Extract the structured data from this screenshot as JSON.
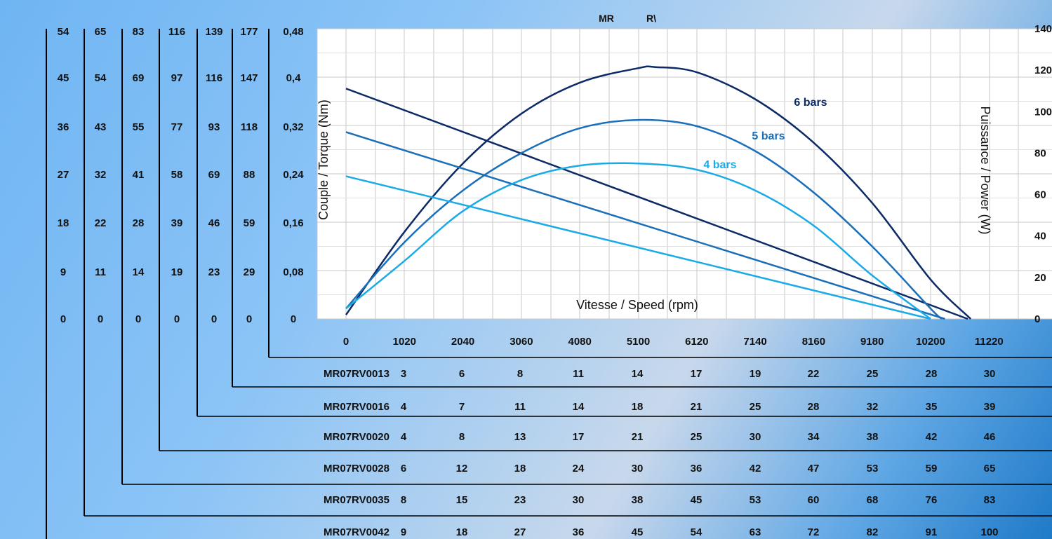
{
  "chart_data": {
    "type": "line",
    "title_parts": [
      "MR",
      "R\\"
    ],
    "xlabel": "Vitesse / Speed (rpm)",
    "ylabel": "Couple / Torque (Nm)",
    "y2label": "Puissance / Power (W)",
    "x_ticks": [
      "0",
      "1020",
      "2040",
      "3060",
      "4080",
      "5100",
      "6120",
      "7140",
      "8160",
      "9180",
      "10200",
      "11220"
    ],
    "xlim": [
      0,
      11860
    ],
    "y_ticks": [
      "0",
      "0,08",
      "0,16",
      "0,24",
      "0,32",
      "0,4",
      "0,48"
    ],
    "ylim": [
      0,
      0.48
    ],
    "y2_ticks": [
      "0",
      "20",
      "40",
      "60",
      "80",
      "100",
      "120",
      "140"
    ],
    "y2lim": [
      0,
      140
    ],
    "torque_columns": [
      [
        "0",
        "9",
        "18",
        "27",
        "36",
        "45",
        "54"
      ],
      [
        "0",
        "11",
        "22",
        "32",
        "43",
        "54",
        "65"
      ],
      [
        "0",
        "14",
        "28",
        "41",
        "55",
        "69",
        "83"
      ],
      [
        "0",
        "19",
        "39",
        "58",
        "77",
        "97",
        "116"
      ],
      [
        "0",
        "23",
        "46",
        "69",
        "93",
        "116",
        "139"
      ],
      [
        "0",
        "29",
        "59",
        "88",
        "118",
        "147",
        "177"
      ]
    ],
    "models": [
      {
        "name": "MR07RV0013",
        "values": [
          "3",
          "6",
          "8",
          "11",
          "14",
          "17",
          "19",
          "22",
          "25",
          "28",
          "30"
        ]
      },
      {
        "name": "MR07RV0016",
        "values": [
          "4",
          "7",
          "11",
          "14",
          "18",
          "21",
          "25",
          "28",
          "32",
          "35",
          "39"
        ]
      },
      {
        "name": "MR07RV0020",
        "values": [
          "4",
          "8",
          "13",
          "17",
          "21",
          "25",
          "30",
          "34",
          "38",
          "42",
          "46"
        ]
      },
      {
        "name": "MR07RV0028",
        "values": [
          "6",
          "12",
          "18",
          "24",
          "30",
          "36",
          "42",
          "47",
          "53",
          "59",
          "65"
        ]
      },
      {
        "name": "MR07RV0035",
        "values": [
          "8",
          "15",
          "23",
          "30",
          "38",
          "45",
          "53",
          "60",
          "68",
          "76",
          "83"
        ]
      },
      {
        "name": "MR07RV0042",
        "values": [
          "9",
          "18",
          "27",
          "36",
          "45",
          "54",
          "63",
          "72",
          "82",
          "91",
          "100"
        ]
      }
    ],
    "series": [
      {
        "name": "6 bars",
        "color": "#0b2a66",
        "torque": {
          "x": [
            0,
            10850
          ],
          "y": [
            0.381,
            0
          ]
        },
        "power": {
          "x": [
            0,
            1020,
            2040,
            3060,
            4080,
            5100,
            5400,
            6120,
            7140,
            8160,
            9180,
            10200,
            10900
          ],
          "y": [
            2,
            42,
            75,
            99,
            114,
            121,
            121.5,
            119,
            106,
            85,
            56,
            19,
            0
          ]
        }
      },
      {
        "name": "5 bars",
        "color": "#1a6fb8",
        "torque": {
          "x": [
            0,
            10450
          ],
          "y": [
            0.309,
            0
          ]
        },
        "power": {
          "x": [
            0,
            1020,
            2040,
            3060,
            4080,
            5100,
            6120,
            7140,
            8160,
            9180,
            10200,
            10400
          ],
          "y": [
            5,
            37,
            62,
            80,
            92,
            96,
            93,
            81,
            61,
            35,
            5,
            0
          ]
        }
      },
      {
        "name": "4 bars",
        "color": "#1aabe6",
        "torque": {
          "x": [
            0,
            10200
          ],
          "y": [
            0.236,
            0
          ]
        },
        "power": {
          "x": [
            0,
            1020,
            2040,
            3060,
            4080,
            5100,
            6120,
            7140,
            8160,
            9180,
            10200
          ],
          "y": [
            5,
            28,
            52,
            67,
            74,
            75,
            72,
            62,
            45,
            21,
            0
          ]
        }
      }
    ],
    "grid": true
  }
}
